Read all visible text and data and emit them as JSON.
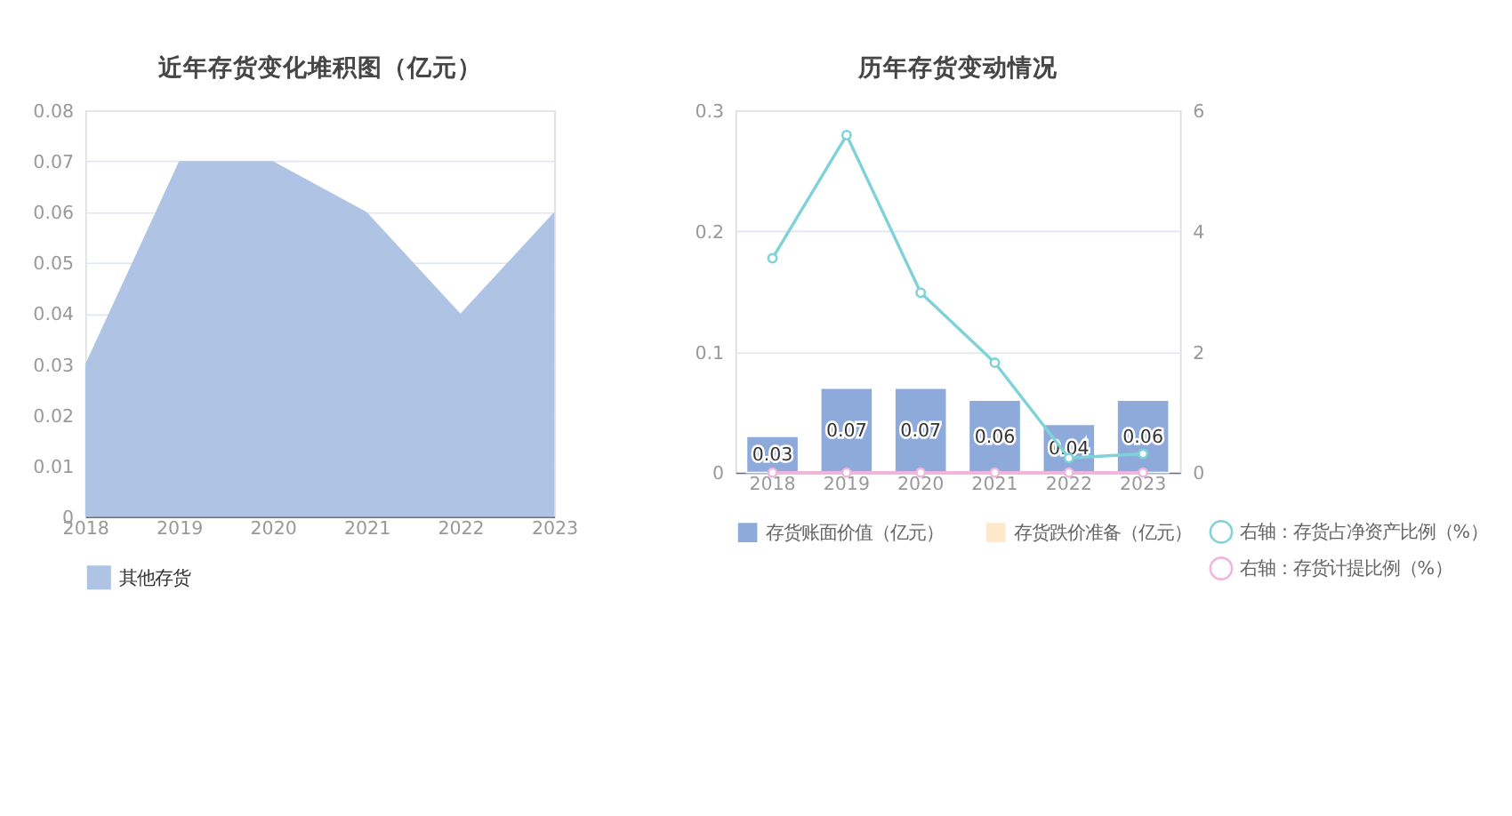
{
  "chart_data": [
    {
      "type": "area",
      "title": "近年存货变化堆积图（亿元）",
      "categories": [
        "2018",
        "2019",
        "2020",
        "2021",
        "2022",
        "2023"
      ],
      "series": [
        {
          "name": "其他存货",
          "color": "#afc4e4",
          "values": [
            0.03,
            0.07,
            0.07,
            0.06,
            0.04,
            0.06
          ]
        }
      ],
      "ylim": [
        0,
        0.08
      ],
      "yticks": [
        0,
        0.01,
        0.02,
        0.03,
        0.04,
        0.05,
        0.06,
        0.07,
        0.08
      ],
      "grid": "y",
      "legend": "bottom"
    },
    {
      "type": "bar",
      "title": "历年存货变动情况",
      "categories": [
        "2018",
        "2019",
        "2020",
        "2021",
        "2022",
        "2023"
      ],
      "series": [
        {
          "name": "存货账面价值（亿元）",
          "color": "#8eaadb",
          "values": [
            0.03,
            0.07,
            0.07,
            0.06,
            0.04,
            0.06
          ],
          "value_labels": [
            "0.03",
            "0.07",
            "0.07",
            "0.06",
            "0.04",
            "0.06"
          ]
        },
        {
          "name": "存货跌价准备（亿元）",
          "color": "#fde9c9",
          "values": [
            null,
            null,
            null,
            null,
            null,
            null
          ]
        },
        {
          "name": "右轴：存货占净资产比例（%）",
          "type": "line",
          "axis": "y2",
          "color": "#7fd3d8",
          "values": [
            3.55,
            5.59,
            2.98,
            1.82,
            0.24,
            0.31
          ]
        },
        {
          "name": "右轴：存货计提比例（%）",
          "type": "line",
          "axis": "y2",
          "color": "#f0b4dd",
          "values": [
            0,
            0,
            0,
            0,
            0,
            0
          ]
        }
      ],
      "ylim": [
        0,
        0.3
      ],
      "yticks": [
        0,
        0.1,
        0.2,
        0.3
      ],
      "y2lim": [
        0,
        6
      ],
      "y2ticks": [
        0,
        2,
        4,
        6
      ],
      "grid": "y",
      "legend": "bottom",
      "marker": "circle"
    }
  ]
}
